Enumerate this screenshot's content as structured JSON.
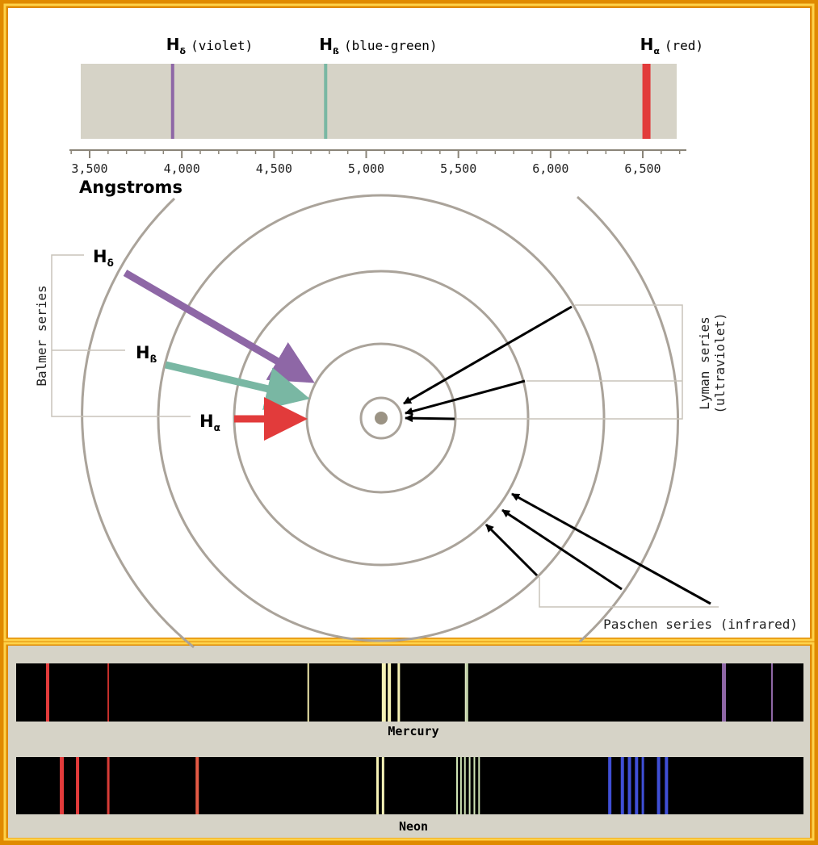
{
  "colors": {
    "frame": "#e08a00",
    "frame_light": "#ffd24a",
    "panel": "#ffffff",
    "strip": "#d6d3c7",
    "orbit": "#aaa39a",
    "violet": "#8e67a6",
    "blue_green": "#79b7a3",
    "red": "#e23b3b",
    "dark_red": "#c9302c",
    "spectrum_bg": "#000000",
    "spectrum_label_bg": "#d6d3c7"
  },
  "balmer_lines": [
    {
      "symbol": "H",
      "subscript": "δ",
      "label": "(violet)",
      "color": "#8e67a6",
      "angstrom": 3950
    },
    {
      "symbol": "H",
      "subscript": "ß",
      "label": "(blue-green)",
      "color": "#79b7a3",
      "angstrom": 4780
    },
    {
      "symbol": "H",
      "subscript": "α",
      "label": "(red)",
      "color": "#e23b3b",
      "angstrom": 6520
    }
  ],
  "axis": {
    "tick_labels": [
      "3,500",
      "4,000",
      "4,500",
      "5,000",
      "5,500",
      "6,000",
      "6,500"
    ],
    "tick_values": [
      3500,
      4000,
      4500,
      5000,
      5500,
      6000,
      6500
    ],
    "unit_label": "Angstroms"
  },
  "diagram": {
    "balmer_label": "Balmer series",
    "lyman_label_1": "Lyman series",
    "lyman_label_2": "(ultraviolet)",
    "paschen_label": "Paschen series (infrared)",
    "arrow_labels": [
      {
        "symbol": "H",
        "subscript": "δ"
      },
      {
        "symbol": "H",
        "subscript": "ß"
      },
      {
        "symbol": "H",
        "subscript": "α"
      }
    ]
  },
  "spectra": [
    {
      "name": "Mercury",
      "lines": [
        {
          "pos": 0.04,
          "color": "#e23b3b",
          "w": 4
        },
        {
          "pos": 0.117,
          "color": "#c9302c",
          "w": 2
        },
        {
          "pos": 0.371,
          "color": "#f2ecae",
          "w": 2
        },
        {
          "pos": 0.467,
          "color": "#f6f2b6",
          "w": 5
        },
        {
          "pos": 0.474,
          "color": "#f6f2b6",
          "w": 4
        },
        {
          "pos": 0.486,
          "color": "#f6f2b6",
          "w": 3
        },
        {
          "pos": 0.571,
          "color": "#dfe9c4",
          "w": 2
        },
        {
          "pos": 0.573,
          "color": "#cfe3b4",
          "w": 2
        },
        {
          "pos": 0.899,
          "color": "#8e67a6",
          "w": 5
        },
        {
          "pos": 0.96,
          "color": "#8e67a6",
          "w": 2
        }
      ]
    },
    {
      "name": "Neon",
      "lines": [
        {
          "pos": 0.058,
          "color": "#e23b3b",
          "w": 5
        },
        {
          "pos": 0.078,
          "color": "#e23b3b",
          "w": 4
        },
        {
          "pos": 0.117,
          "color": "#d73c37",
          "w": 3
        },
        {
          "pos": 0.23,
          "color": "#e45a45",
          "w": 4
        },
        {
          "pos": 0.459,
          "color": "#f6f2b6",
          "w": 3
        },
        {
          "pos": 0.466,
          "color": "#f6f2b6",
          "w": 3
        },
        {
          "pos": 0.56,
          "color": "#cfe3b4",
          "w": 2
        },
        {
          "pos": 0.565,
          "color": "#cfe3b4",
          "w": 2
        },
        {
          "pos": 0.57,
          "color": "#cfe3b4",
          "w": 2
        },
        {
          "pos": 0.576,
          "color": "#cfe3b4",
          "w": 2
        },
        {
          "pos": 0.582,
          "color": "#cfe3b4",
          "w": 2
        },
        {
          "pos": 0.588,
          "color": "#cfe3b4",
          "w": 2
        },
        {
          "pos": 0.754,
          "color": "#3f4fd6",
          "w": 4
        },
        {
          "pos": 0.77,
          "color": "#3f4fd6",
          "w": 4
        },
        {
          "pos": 0.779,
          "color": "#3f4fd6",
          "w": 4
        },
        {
          "pos": 0.788,
          "color": "#3f4fd6",
          "w": 4
        },
        {
          "pos": 0.796,
          "color": "#3f4fd6",
          "w": 3
        },
        {
          "pos": 0.816,
          "color": "#3f4fd6",
          "w": 4
        },
        {
          "pos": 0.826,
          "color": "#3f4fd6",
          "w": 4
        }
      ]
    }
  ]
}
